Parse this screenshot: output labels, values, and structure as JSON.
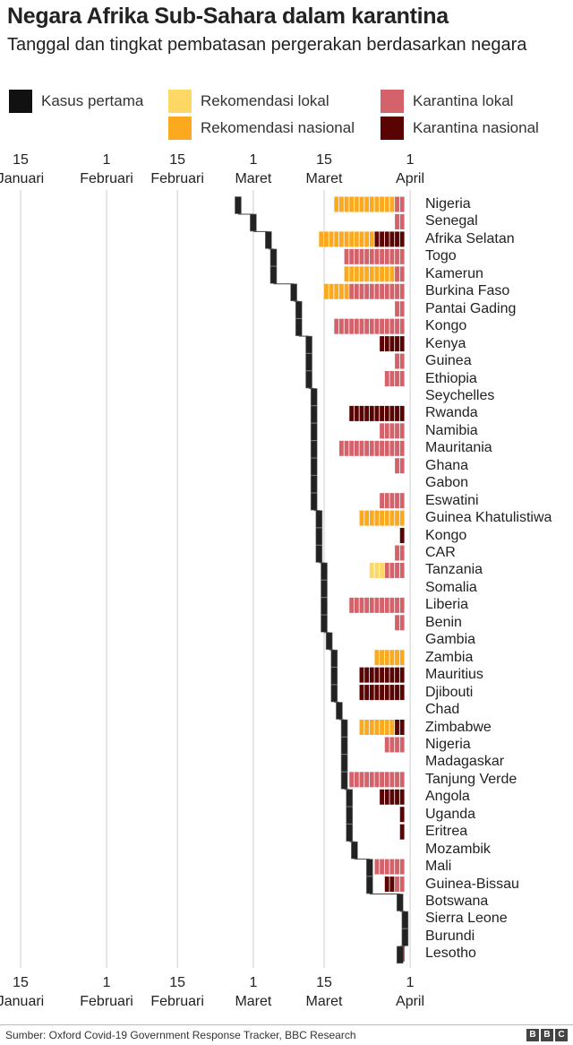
{
  "title": "Negara Afrika Sub-Sahara dalam karantina",
  "subtitle": "Tanggal dan tingkat pembatasan pergerakan berdasarkan negara",
  "legend": [
    {
      "label": "Kasus pertama",
      "color": "#111111"
    },
    {
      "label": "Rekomendasi lokal",
      "color": "#FDD865"
    },
    {
      "label": "Rekomendasi nasional",
      "color": "#FBA91E"
    },
    {
      "label": "Karantina lokal",
      "color": "#D4626B"
    },
    {
      "label": "Karantina nasional",
      "color": "#5A0303"
    }
  ],
  "axis_ticks": [
    {
      "day": 15,
      "top": "15",
      "bottom": "Januari"
    },
    {
      "day": 32,
      "top": "1",
      "bottom": "Februari"
    },
    {
      "day": 46,
      "top": "15",
      "bottom": "Februari"
    },
    {
      "day": 61,
      "top": "1",
      "bottom": "Maret"
    },
    {
      "day": 75,
      "top": "15",
      "bottom": "Maret"
    },
    {
      "day": 92,
      "top": "1",
      "bottom": "April"
    }
  ],
  "source": "Sumber: Oxford Covid-19 Government Response Tracker, BBC Research",
  "logo": [
    "B",
    "B",
    "C"
  ],
  "chart_data": {
    "type": "timeline",
    "title": "Negara Afrika Sub-Sahara dalam karantina",
    "x_unit": "day of year 2020 (1 = 1 Januari)",
    "xlim": [
      11,
      92
    ],
    "level_codes": {
      "1": "Rekomendasi lokal",
      "2": "Rekomendasi nasional",
      "3": "Karantina lokal",
      "4": "Karantina nasional"
    },
    "rows": [
      {
        "country": "Nigeria",
        "first_case": 58,
        "levels": [
          [
            77,
            89,
            2
          ],
          [
            89,
            91,
            3
          ]
        ]
      },
      {
        "country": "Senegal",
        "first_case": 61,
        "levels": [
          [
            89,
            91,
            3
          ]
        ]
      },
      {
        "country": "Afrika Selatan",
        "first_case": 64,
        "levels": [
          [
            74,
            85,
            2
          ],
          [
            85,
            91,
            4
          ]
        ]
      },
      {
        "country": "Togo",
        "first_case": 65,
        "levels": [
          [
            79,
            91,
            3
          ]
        ]
      },
      {
        "country": "Kamerun",
        "first_case": 65,
        "levels": [
          [
            79,
            89,
            2
          ],
          [
            89,
            91,
            3
          ]
        ]
      },
      {
        "country": "Burkina Faso",
        "first_case": 69,
        "levels": [
          [
            75,
            80,
            2
          ],
          [
            80,
            91,
            3
          ]
        ]
      },
      {
        "country": "Pantai Gading",
        "first_case": 70,
        "levels": [
          [
            89,
            91,
            3
          ]
        ]
      },
      {
        "country": "Kongo",
        "first_case": 70,
        "levels": [
          [
            77,
            91,
            3
          ]
        ]
      },
      {
        "country": "Kenya",
        "first_case": 72,
        "levels": [
          [
            86,
            91,
            4
          ]
        ]
      },
      {
        "country": "Guinea",
        "first_case": 72,
        "levels": [
          [
            89,
            91,
            3
          ]
        ]
      },
      {
        "country": "Ethiopia",
        "first_case": 72,
        "levels": [
          [
            87,
            91,
            3
          ]
        ]
      },
      {
        "country": "Seychelles",
        "first_case": 73,
        "levels": []
      },
      {
        "country": "Rwanda",
        "first_case": 73,
        "levels": [
          [
            80,
            91,
            4
          ]
        ]
      },
      {
        "country": "Namibia",
        "first_case": 73,
        "levels": [
          [
            86,
            91,
            3
          ]
        ]
      },
      {
        "country": "Mauritania",
        "first_case": 73,
        "levels": [
          [
            78,
            91,
            3
          ]
        ]
      },
      {
        "country": "Ghana",
        "first_case": 73,
        "levels": [
          [
            89,
            91,
            3
          ]
        ]
      },
      {
        "country": "Gabon",
        "first_case": 73,
        "levels": []
      },
      {
        "country": "Eswatini",
        "first_case": 73,
        "levels": [
          [
            86,
            91,
            3
          ]
        ]
      },
      {
        "country": "Guinea Khatulistiwa",
        "first_case": 74,
        "levels": [
          [
            82,
            91,
            2
          ]
        ]
      },
      {
        "country": "Kongo",
        "first_case": 74,
        "levels": [
          [
            90,
            91,
            4
          ]
        ]
      },
      {
        "country": "CAR",
        "first_case": 74,
        "levels": [
          [
            89,
            91,
            3
          ]
        ]
      },
      {
        "country": "Tanzania",
        "first_case": 75,
        "levels": [
          [
            84,
            87,
            1
          ],
          [
            87,
            91,
            3
          ]
        ]
      },
      {
        "country": "Somalia",
        "first_case": 75,
        "levels": []
      },
      {
        "country": "Liberia",
        "first_case": 75,
        "levels": [
          [
            80,
            91,
            3
          ]
        ]
      },
      {
        "country": "Benin",
        "first_case": 75,
        "levels": [
          [
            89,
            91,
            3
          ]
        ]
      },
      {
        "country": "Gambia",
        "first_case": 76,
        "levels": []
      },
      {
        "country": "Zambia",
        "first_case": 77,
        "levels": [
          [
            85,
            91,
            2
          ]
        ]
      },
      {
        "country": "Mauritius",
        "first_case": 77,
        "levels": [
          [
            82,
            91,
            4
          ]
        ]
      },
      {
        "country": "Djibouti",
        "first_case": 77,
        "levels": [
          [
            82,
            91,
            4
          ]
        ]
      },
      {
        "country": "Chad",
        "first_case": 78,
        "levels": []
      },
      {
        "country": "Zimbabwe",
        "first_case": 79,
        "levels": [
          [
            82,
            89,
            2
          ],
          [
            89,
            91,
            4
          ]
        ]
      },
      {
        "country": "Nigeria",
        "first_case": 79,
        "levels": [
          [
            87,
            91,
            3
          ]
        ]
      },
      {
        "country": "Madagaskar",
        "first_case": 79,
        "levels": []
      },
      {
        "country": "Tanjung Verde",
        "first_case": 79,
        "levels": [
          [
            80,
            91,
            3
          ]
        ]
      },
      {
        "country": "Angola",
        "first_case": 80,
        "levels": [
          [
            86,
            91,
            4
          ]
        ]
      },
      {
        "country": "Uganda",
        "first_case": 80,
        "levels": [
          [
            90,
            91,
            4
          ]
        ]
      },
      {
        "country": "Eritrea",
        "first_case": 80,
        "levels": [
          [
            90,
            91,
            4
          ]
        ]
      },
      {
        "country": "Mozambik",
        "first_case": 81,
        "levels": []
      },
      {
        "country": "Mali",
        "first_case": 84,
        "levels": [
          [
            85,
            91,
            3
          ]
        ]
      },
      {
        "country": "Guinea-Bissau",
        "first_case": 84,
        "levels": [
          [
            87,
            89,
            4
          ],
          [
            89,
            91,
            3
          ]
        ]
      },
      {
        "country": "Botswana",
        "first_case": 90,
        "levels": []
      },
      {
        "country": "Sierra Leone",
        "first_case": 91,
        "levels": []
      },
      {
        "country": "Burundi",
        "first_case": 91,
        "levels": []
      },
      {
        "country": "Lesotho",
        "first_case": 90,
        "levels": [
          [
            90,
            91,
            4
          ]
        ]
      }
    ]
  }
}
